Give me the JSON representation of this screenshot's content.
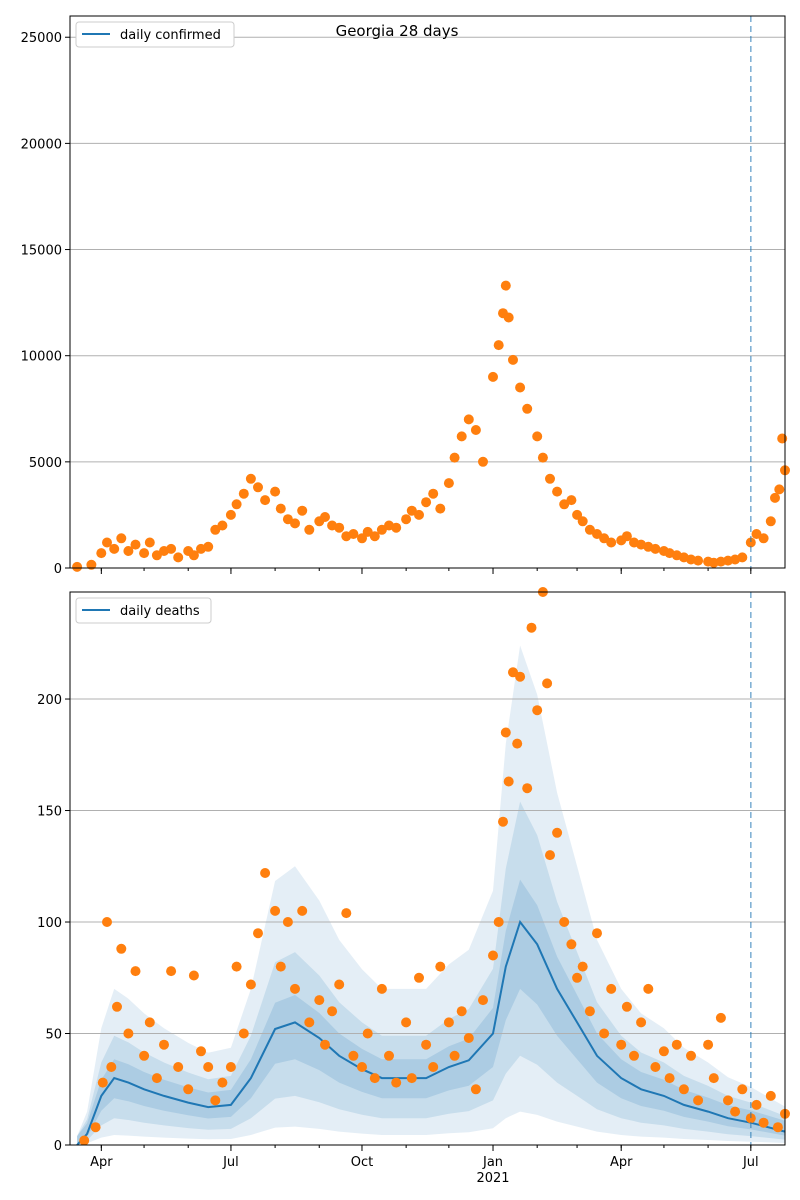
{
  "colors": {
    "line": "#1f77b4",
    "points": "#ff7f0e",
    "band": "#1f77b4",
    "grid": "#b0b0b0",
    "vline": "#1f77b4"
  },
  "chart_data": [
    {
      "type": "scatter",
      "title": "Georgia 28 days",
      "legend": "daily confirmed",
      "legend_position": "top-left",
      "xlabel": "",
      "ylabel": "",
      "ylim": [
        0,
        26000
      ],
      "yticks": [
        0,
        5000,
        10000,
        15000,
        20000,
        25000
      ],
      "ytick_labels": [
        "0",
        "5000",
        "10000",
        "15000",
        "20000",
        "25000"
      ],
      "xlim": [
        "2020-03-10",
        "2021-07-25"
      ],
      "grid": true,
      "forecast_start": "2021-07-01",
      "series_points": [
        [
          "2020-03-15",
          50
        ],
        [
          "2020-03-25",
          150
        ],
        [
          "2020-04-01",
          700
        ],
        [
          "2020-04-05",
          1200
        ],
        [
          "2020-04-10",
          900
        ],
        [
          "2020-04-15",
          1400
        ],
        [
          "2020-04-20",
          800
        ],
        [
          "2020-04-25",
          1100
        ],
        [
          "2020-05-01",
          700
        ],
        [
          "2020-05-05",
          1200
        ],
        [
          "2020-05-10",
          600
        ],
        [
          "2020-05-15",
          800
        ],
        [
          "2020-05-20",
          900
        ],
        [
          "2020-05-25",
          500
        ],
        [
          "2020-06-01",
          800
        ],
        [
          "2020-06-05",
          600
        ],
        [
          "2020-06-10",
          900
        ],
        [
          "2020-06-15",
          1000
        ],
        [
          "2020-06-20",
          1800
        ],
        [
          "2020-06-25",
          2000
        ],
        [
          "2020-07-01",
          2500
        ],
        [
          "2020-07-05",
          3000
        ],
        [
          "2020-07-10",
          3500
        ],
        [
          "2020-07-15",
          4200
        ],
        [
          "2020-07-20",
          3800
        ],
        [
          "2020-07-25",
          3200
        ],
        [
          "2020-08-01",
          3600
        ],
        [
          "2020-08-05",
          2800
        ],
        [
          "2020-08-10",
          2300
        ],
        [
          "2020-08-15",
          2100
        ],
        [
          "2020-08-20",
          2700
        ],
        [
          "2020-08-25",
          1800
        ],
        [
          "2020-09-01",
          2200
        ],
        [
          "2020-09-05",
          2400
        ],
        [
          "2020-09-10",
          2000
        ],
        [
          "2020-09-15",
          1900
        ],
        [
          "2020-09-20",
          1500
        ],
        [
          "2020-09-25",
          1600
        ],
        [
          "2020-10-01",
          1400
        ],
        [
          "2020-10-05",
          1700
        ],
        [
          "2020-10-10",
          1500
        ],
        [
          "2020-10-15",
          1800
        ],
        [
          "2020-10-20",
          2000
        ],
        [
          "2020-10-25",
          1900
        ],
        [
          "2020-11-01",
          2300
        ],
        [
          "2020-11-05",
          2700
        ],
        [
          "2020-11-10",
          2500
        ],
        [
          "2020-11-15",
          3100
        ],
        [
          "2020-11-20",
          3500
        ],
        [
          "2020-11-25",
          2800
        ],
        [
          "2020-12-01",
          4000
        ],
        [
          "2020-12-05",
          5200
        ],
        [
          "2020-12-10",
          6200
        ],
        [
          "2020-12-15",
          7000
        ],
        [
          "2020-12-20",
          6500
        ],
        [
          "2020-12-25",
          5000
        ],
        [
          "2021-01-01",
          9000
        ],
        [
          "2021-01-05",
          10500
        ],
        [
          "2021-01-08",
          12000
        ],
        [
          "2021-01-10",
          13300
        ],
        [
          "2021-01-12",
          11800
        ],
        [
          "2021-01-15",
          9800
        ],
        [
          "2021-01-20",
          8500
        ],
        [
          "2021-01-25",
          7500
        ],
        [
          "2021-02-01",
          6200
        ],
        [
          "2021-02-05",
          5200
        ],
        [
          "2021-02-10",
          4200
        ],
        [
          "2021-02-15",
          3600
        ],
        [
          "2021-02-20",
          3000
        ],
        [
          "2021-02-25",
          3200
        ],
        [
          "2021-03-01",
          2500
        ],
        [
          "2021-03-05",
          2200
        ],
        [
          "2021-03-10",
          1800
        ],
        [
          "2021-03-15",
          1600
        ],
        [
          "2021-03-20",
          1400
        ],
        [
          "2021-03-25",
          1200
        ],
        [
          "2021-04-01",
          1300
        ],
        [
          "2021-04-05",
          1500
        ],
        [
          "2021-04-10",
          1200
        ],
        [
          "2021-04-15",
          1100
        ],
        [
          "2021-04-20",
          1000
        ],
        [
          "2021-04-25",
          900
        ],
        [
          "2021-05-01",
          800
        ],
        [
          "2021-05-05",
          700
        ],
        [
          "2021-05-10",
          600
        ],
        [
          "2021-05-15",
          500
        ],
        [
          "2021-05-20",
          400
        ],
        [
          "2021-05-25",
          350
        ],
        [
          "2021-06-01",
          300
        ],
        [
          "2021-06-05",
          250
        ],
        [
          "2021-06-10",
          300
        ],
        [
          "2021-06-15",
          350
        ],
        [
          "2021-06-20",
          400
        ],
        [
          "2021-06-25",
          500
        ],
        [
          "2021-07-01",
          1200
        ],
        [
          "2021-07-05",
          1600
        ],
        [
          "2021-07-10",
          1400
        ],
        [
          "2021-07-15",
          2200
        ],
        [
          "2021-07-18",
          3300
        ],
        [
          "2021-07-21",
          3700
        ],
        [
          "2021-07-23",
          6100
        ],
        [
          "2021-07-25",
          4600
        ]
      ]
    },
    {
      "type": "scatter",
      "legend": "daily deaths",
      "legend_position": "top-left",
      "xlabel": "",
      "ylabel": "",
      "ylim": [
        0,
        248
      ],
      "yticks": [
        0,
        50,
        100,
        150,
        200
      ],
      "ytick_labels": [
        "0",
        "50",
        "100",
        "150",
        "200"
      ],
      "xlim": [
        "2020-03-10",
        "2021-07-25"
      ],
      "grid": true,
      "forecast_start": "2021-07-01",
      "xticks": [
        "2020-04-01",
        "2020-07-01",
        "2020-10-01",
        "2021-01-01",
        "2021-04-01",
        "2021-07-01"
      ],
      "xtick_labels": [
        "Apr",
        "Jul",
        "Oct",
        "Jan",
        "Apr",
        "Jul"
      ],
      "xtick_sublabel": "2021",
      "line_points": [
        [
          "2020-03-15",
          0
        ],
        [
          "2020-03-22",
          5
        ],
        [
          "2020-04-01",
          22
        ],
        [
          "2020-04-10",
          30
        ],
        [
          "2020-04-20",
          28
        ],
        [
          "2020-05-01",
          25
        ],
        [
          "2020-05-15",
          22
        ],
        [
          "2020-06-01",
          19
        ],
        [
          "2020-06-15",
          17
        ],
        [
          "2020-07-01",
          18
        ],
        [
          "2020-07-15",
          30
        ],
        [
          "2020-08-01",
          52
        ],
        [
          "2020-08-15",
          55
        ],
        [
          "2020-09-01",
          48
        ],
        [
          "2020-09-15",
          40
        ],
        [
          "2020-10-01",
          34
        ],
        [
          "2020-10-15",
          30
        ],
        [
          "2020-11-01",
          30
        ],
        [
          "2020-11-15",
          30
        ],
        [
          "2020-12-01",
          35
        ],
        [
          "2020-12-15",
          38
        ],
        [
          "2021-01-01",
          50
        ],
        [
          "2021-01-10",
          80
        ],
        [
          "2021-01-20",
          100
        ],
        [
          "2021-02-01",
          90
        ],
        [
          "2021-02-15",
          70
        ],
        [
          "2021-03-01",
          55
        ],
        [
          "2021-03-15",
          40
        ],
        [
          "2021-04-01",
          30
        ],
        [
          "2021-04-15",
          25
        ],
        [
          "2021-05-01",
          22
        ],
        [
          "2021-05-15",
          18
        ],
        [
          "2021-06-01",
          15
        ],
        [
          "2021-06-15",
          12
        ],
        [
          "2021-07-01",
          10
        ],
        [
          "2021-07-25",
          6
        ]
      ],
      "series_points": [
        [
          "2020-03-20",
          2
        ],
        [
          "2020-03-28",
          8
        ],
        [
          "2020-04-02",
          28
        ],
        [
          "2020-04-05",
          100
        ],
        [
          "2020-04-08",
          35
        ],
        [
          "2020-04-12",
          62
        ],
        [
          "2020-04-15",
          88
        ],
        [
          "2020-04-20",
          50
        ],
        [
          "2020-04-25",
          78
        ],
        [
          "2020-05-01",
          40
        ],
        [
          "2020-05-05",
          55
        ],
        [
          "2020-05-10",
          30
        ],
        [
          "2020-05-15",
          45
        ],
        [
          "2020-05-20",
          78
        ],
        [
          "2020-05-25",
          35
        ],
        [
          "2020-06-01",
          25
        ],
        [
          "2020-06-05",
          76
        ],
        [
          "2020-06-10",
          42
        ],
        [
          "2020-06-15",
          35
        ],
        [
          "2020-06-20",
          20
        ],
        [
          "2020-06-25",
          28
        ],
        [
          "2020-07-01",
          35
        ],
        [
          "2020-07-05",
          80
        ],
        [
          "2020-07-10",
          50
        ],
        [
          "2020-07-15",
          72
        ],
        [
          "2020-07-20",
          95
        ],
        [
          "2020-07-25",
          122
        ],
        [
          "2020-08-01",
          105
        ],
        [
          "2020-08-05",
          80
        ],
        [
          "2020-08-10",
          100
        ],
        [
          "2020-08-15",
          70
        ],
        [
          "2020-08-20",
          105
        ],
        [
          "2020-08-25",
          55
        ],
        [
          "2020-09-01",
          65
        ],
        [
          "2020-09-05",
          45
        ],
        [
          "2020-09-10",
          60
        ],
        [
          "2020-09-15",
          72
        ],
        [
          "2020-09-20",
          104
        ],
        [
          "2020-09-25",
          40
        ],
        [
          "2020-10-01",
          35
        ],
        [
          "2020-10-05",
          50
        ],
        [
          "2020-10-10",
          30
        ],
        [
          "2020-10-15",
          70
        ],
        [
          "2020-10-20",
          40
        ],
        [
          "2020-10-25",
          28
        ],
        [
          "2020-11-01",
          55
        ],
        [
          "2020-11-05",
          30
        ],
        [
          "2020-11-10",
          75
        ],
        [
          "2020-11-15",
          45
        ],
        [
          "2020-11-20",
          35
        ],
        [
          "2020-11-25",
          80
        ],
        [
          "2020-12-01",
          55
        ],
        [
          "2020-12-05",
          40
        ],
        [
          "2020-12-10",
          60
        ],
        [
          "2020-12-15",
          48
        ],
        [
          "2020-12-20",
          25
        ],
        [
          "2020-12-25",
          65
        ],
        [
          "2021-01-01",
          85
        ],
        [
          "2021-01-05",
          100
        ],
        [
          "2021-01-08",
          145
        ],
        [
          "2021-01-10",
          185
        ],
        [
          "2021-01-12",
          163
        ],
        [
          "2021-01-15",
          212
        ],
        [
          "2021-01-18",
          180
        ],
        [
          "2021-01-20",
          210
        ],
        [
          "2021-01-25",
          160
        ],
        [
          "2021-01-28",
          232
        ],
        [
          "2021-02-01",
          195
        ],
        [
          "2021-02-05",
          248
        ],
        [
          "2021-02-08",
          207
        ],
        [
          "2021-02-10",
          130
        ],
        [
          "2021-02-15",
          140
        ],
        [
          "2021-02-20",
          100
        ],
        [
          "2021-02-25",
          90
        ],
        [
          "2021-03-01",
          75
        ],
        [
          "2021-03-05",
          80
        ],
        [
          "2021-03-10",
          60
        ],
        [
          "2021-03-15",
          95
        ],
        [
          "2021-03-20",
          50
        ],
        [
          "2021-03-25",
          70
        ],
        [
          "2021-04-01",
          45
        ],
        [
          "2021-04-05",
          62
        ],
        [
          "2021-04-10",
          40
        ],
        [
          "2021-04-15",
          55
        ],
        [
          "2021-04-20",
          70
        ],
        [
          "2021-04-25",
          35
        ],
        [
          "2021-05-01",
          42
        ],
        [
          "2021-05-05",
          30
        ],
        [
          "2021-05-10",
          45
        ],
        [
          "2021-05-15",
          25
        ],
        [
          "2021-05-20",
          40
        ],
        [
          "2021-05-25",
          20
        ],
        [
          "2021-06-01",
          45
        ],
        [
          "2021-06-05",
          30
        ],
        [
          "2021-06-10",
          57
        ],
        [
          "2021-06-15",
          20
        ],
        [
          "2021-06-20",
          15
        ],
        [
          "2021-06-25",
          25
        ],
        [
          "2021-07-01",
          12
        ],
        [
          "2021-07-05",
          18
        ],
        [
          "2021-07-10",
          10
        ],
        [
          "2021-07-15",
          22
        ],
        [
          "2021-07-20",
          8
        ],
        [
          "2021-07-25",
          14
        ]
      ]
    }
  ]
}
